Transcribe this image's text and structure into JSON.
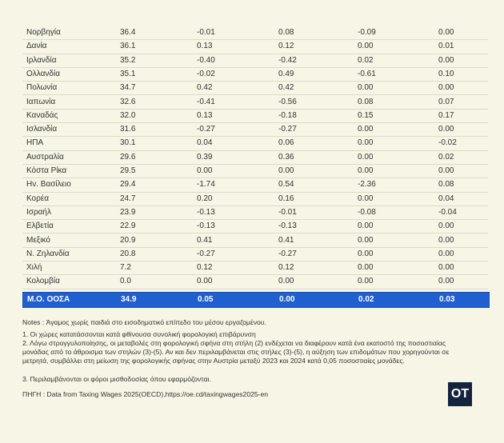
{
  "table": {
    "rows": [
      [
        "Νορβηγία",
        "36.4",
        "-0.01",
        "0.08",
        "-0.09",
        "0.00"
      ],
      [
        "Δανία",
        "36.1",
        "0.13",
        "0.12",
        "0.00",
        "0.01"
      ],
      [
        "Ιρλανδία",
        "35.2",
        "-0.40",
        "-0.42",
        "0.02",
        "0.00"
      ],
      [
        "Ολλανδία",
        "35.1",
        "-0.02",
        "0.49",
        "-0.61",
        "0.10"
      ],
      [
        "Πολωνία",
        "34.7",
        "0.42",
        "0.42",
        "0.00",
        "0.00"
      ],
      [
        "Ιαπωνία",
        "32.6",
        "-0.41",
        "-0.56",
        "0.08",
        "0.07"
      ],
      [
        "Καναδάς",
        "32.0",
        "0.13",
        "-0.18",
        "0.15",
        "0.17"
      ],
      [
        "Ισλανδία",
        "31.6",
        "-0.27",
        "-0.27",
        "0.00",
        "0.00"
      ],
      [
        "ΗΠΑ",
        "30.1",
        "0.04",
        "0.06",
        "0.00",
        "-0.02"
      ],
      [
        "Αυστραλία",
        "29.6",
        "0.39",
        "0.36",
        "0.00",
        "0.02"
      ],
      [
        "Κόστα Ρίκα",
        "29.5",
        "0.00",
        "0.00",
        "0.00",
        "0.00"
      ],
      [
        "Ην. Βασίλειο",
        "29.4",
        "-1.74",
        "0.54",
        "-2.36",
        "0.08"
      ],
      [
        "Κορέα",
        "24.7",
        "0.20",
        "0.16",
        "0.00",
        "0.04"
      ],
      [
        "Ισραήλ",
        "23.9",
        "-0.13",
        "-0.01",
        "-0.08",
        "-0.04"
      ],
      [
        "Ελβετία",
        "22.9",
        "-0.13",
        "-0.13",
        "0.00",
        "0.00"
      ],
      [
        "Μεξικό",
        "20.9",
        "0.41",
        "0.41",
        "0.00",
        "0.00"
      ],
      [
        "Ν. Ζηλανδία",
        "20.8",
        "-0.27",
        "-0.27",
        "0.00",
        "0.00"
      ],
      [
        "Χιλή",
        "7.2",
        "0.12",
        "0.12",
        "0.00",
        "0.00"
      ],
      [
        "Κολομβία",
        "0.0",
        "0.00",
        "0.00",
        "0.00",
        "0.00"
      ]
    ],
    "footer": [
      "Μ.Ο. ΟΟΣΑ",
      "34.9",
      "0.05",
      "0.00",
      "0.02",
      "0.03"
    ]
  },
  "notes": [
    "Notes : Άγαμος χωρίς παιδιά στο εισοδηματικό επίπεδο του μέσου εργαζομένου.",
    "1. Οι χώρες κατατάσσονται κατά φθίνουσα συνολική φορολογική επιβάρυνση",
    "2. Λόγω στρογγυλοποίησης, οι μεταβολές στη φορολογική σφήνα στη στήλη (2) ενδέχεται να διαφέρουν κατά ένα εκατοστό της ποσοστιαίας μονάδας από το άθροισμα των στηλών (3)-(5). Αν και δεν περιλαμβάνεται στις στήλες (3)-(5), η αύξηση των επιδομάτων που χορηγούνται σε μετρητά, συμβάλλει στη μείωση της φορολογικής σφήνας στην Αυστρία μεταξύ 2023 και 2024 κατά 0,05 ποσοστιαίες μονάδες.",
    "3. Περιλαμβάνονται οι φόροι μισθοδοσίας όπου εφαρμόζονται."
  ],
  "source": "ΠΗΓΗ : Data from Taxing Wages 2025(OECD),https://oe.cd/taxingwages2025-en",
  "logo": "OT"
}
